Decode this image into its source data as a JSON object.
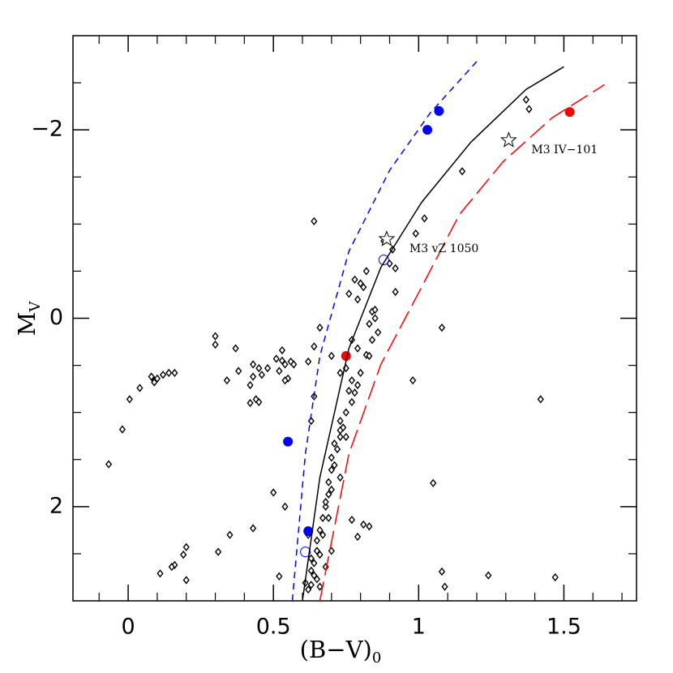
{
  "chart_data": {
    "type": "scatter",
    "xlabel": "(B−V)",
    "xlabel_sub": "0",
    "ylabel": "M",
    "ylabel_sub": "V",
    "xlim": [
      -0.19,
      1.75
    ],
    "ylim": [
      -3,
      3
    ],
    "y_inverted": true,
    "xticks": [
      0,
      0.5,
      1,
      1.5
    ],
    "xminor": [
      -0.1,
      0.1,
      0.2,
      0.3,
      0.4,
      0.6,
      0.7,
      0.8,
      0.9,
      1.1,
      1.2,
      1.3,
      1.4,
      1.6,
      1.7
    ],
    "yticks": [
      {
        "value": -2,
        "label": "−2"
      },
      0,
      2
    ],
    "yminor": [
      -2.5,
      -1.5,
      -1,
      -0.5,
      0.5,
      1,
      1.5,
      2.5
    ],
    "series": [
      {
        "marker": "diamond",
        "color": "#000000",
        "x": [
          -0.067,
          -0.02,
          0.005,
          0.04,
          0.08,
          0.09,
          0.09,
          0.1,
          0.12,
          0.14,
          0.16,
          0.3,
          0.3,
          0.37,
          0.34,
          0.38,
          0.43,
          0.45,
          0.46,
          0.43,
          0.42,
          0.44,
          0.45,
          0.42,
          0.48,
          0.51,
          0.53,
          0.53,
          0.54,
          0.56,
          0.57,
          0.55,
          0.54,
          0.52,
          0.64,
          0.62,
          0.64,
          0.63,
          0.5,
          0.54,
          0.64,
          0.66,
          0.7,
          0.88,
          0.91,
          0.9,
          0.92,
          0.92,
          0.99,
          1.02,
          1.15,
          1.37,
          1.38,
          1.08,
          0.98,
          1.42,
          1.05,
          0.43,
          0.35,
          0.31,
          0.2,
          0.19,
          0.16,
          0.15,
          0.11,
          0.2,
          0.52,
          1.08,
          1.09,
          1.24,
          1.47,
          0.77,
          0.81,
          0.83,
          0.79,
          0.76,
          0.78,
          0.8,
          0.81,
          0.79,
          0.82,
          0.84,
          0.83,
          0.85,
          0.85,
          0.86,
          0.84,
          0.82,
          0.83,
          0.79,
          0.76,
          0.78,
          0.77,
          0.75,
          0.74,
          0.73,
          0.72,
          0.7,
          0.7,
          0.69,
          0.69,
          0.68,
          0.67,
          0.66,
          0.65,
          0.65,
          0.64,
          0.64,
          0.63,
          0.62,
          0.73,
          0.73,
          0.71,
          0.75,
          0.71,
          0.73,
          0.7,
          0.68,
          0.69,
          0.67,
          0.66,
          0.68,
          0.65,
          0.66,
          0.61,
          0.63,
          0.63,
          0.7,
          0.62,
          0.75,
          0.8,
          0.77,
          0.79,
          0.77,
          0.73
        ],
        "values": [
          1.55,
          1.18,
          0.86,
          0.74,
          0.62,
          0.66,
          0.68,
          0.64,
          0.6,
          0.58,
          0.58,
          0.19,
          0.28,
          0.32,
          0.66,
          0.56,
          0.49,
          0.53,
          0.6,
          0.62,
          0.71,
          0.86,
          0.89,
          0.9,
          0.53,
          0.43,
          0.34,
          0.45,
          0.49,
          0.46,
          0.49,
          0.64,
          0.66,
          0.56,
          0.3,
          0.46,
          0.83,
          1.09,
          1.85,
          2.0,
          -1.03,
          0.1,
          0.4,
          -0.82,
          -0.73,
          -0.58,
          -0.53,
          -0.28,
          -0.9,
          -1.06,
          -1.56,
          -2.32,
          -2.22,
          0.1,
          0.66,
          0.86,
          1.75,
          2.23,
          2.3,
          2.48,
          2.43,
          2.51,
          2.62,
          2.64,
          2.71,
          2.78,
          2.74,
          2.69,
          2.85,
          2.73,
          2.75,
          2.14,
          2.19,
          2.21,
          2.32,
          -0.26,
          -0.41,
          -0.37,
          -0.33,
          -0.2,
          -0.5,
          -0.07,
          0.06,
          -0.09,
          0,
          0.15,
          0.23,
          0.39,
          0.4,
          0.32,
          0.77,
          0.79,
          0.89,
          1.0,
          1.16,
          1.26,
          1.39,
          1.48,
          1.61,
          1.74,
          1.87,
          2.0,
          2.12,
          2.25,
          2.36,
          2.47,
          2.6,
          2.73,
          2.83,
          2.88,
          1.09,
          1.19,
          1.33,
          1.26,
          1.56,
          1.69,
          1.82,
          1.95,
          2.12,
          2.3,
          2.51,
          2.64,
          2.77,
          2.85,
          2.81,
          2.68,
          2.55,
          2.47,
          2.3,
          0.53,
          0.58,
          0.66,
          0.71,
          0.23,
          0.58
        ]
      },
      {
        "marker": "circle",
        "color": "#0000ff",
        "x": [
          1.07,
          1.03,
          0.55,
          0.62
        ],
        "values": [
          -2.2,
          -2.0,
          1.31,
          2.26
        ]
      },
      {
        "marker": "open-circle",
        "color": "#0000ff",
        "x": [
          0.88,
          0.61
        ],
        "values": [
          -0.62,
          2.48
        ]
      },
      {
        "marker": "circle",
        "color": "#ff0000",
        "x": [
          1.52,
          0.75
        ],
        "values": [
          -2.19,
          0.4
        ]
      },
      {
        "marker": "star",
        "color": "#000000",
        "x": [
          0.89,
          1.31
        ],
        "values": [
          -0.84,
          -1.89
        ],
        "labels": [
          "M3 vZ 1050",
          "M3 IV−101"
        ]
      },
      {
        "marker": "line",
        "dash": "8,6",
        "color": "#0000ff",
        "x": [
          0.565,
          0.61,
          0.66,
          0.76,
          0.9,
          1.04,
          1.21
        ],
        "values": [
          3,
          1.44,
          0.4,
          -0.71,
          -1.57,
          -2.18,
          -2.76
        ]
      },
      {
        "marker": "line",
        "dash": "none",
        "color": "#000000",
        "x": [
          0.6,
          0.66,
          0.76,
          0.87,
          1.01,
          1.18,
          1.37,
          1.5
        ],
        "values": [
          3,
          1.69,
          0.32,
          -0.54,
          -1.23,
          -1.87,
          -2.43,
          -2.67
        ]
      },
      {
        "marker": "line",
        "dash": "24,8",
        "color": "#ff0000",
        "x": [
          0.66,
          0.76,
          0.87,
          1.01,
          1.14,
          1.29,
          1.46,
          1.64
        ],
        "values": [
          3,
          1.44,
          0.49,
          -0.33,
          -1.1,
          -1.66,
          -2.13,
          -2.48
        ]
      }
    ]
  }
}
